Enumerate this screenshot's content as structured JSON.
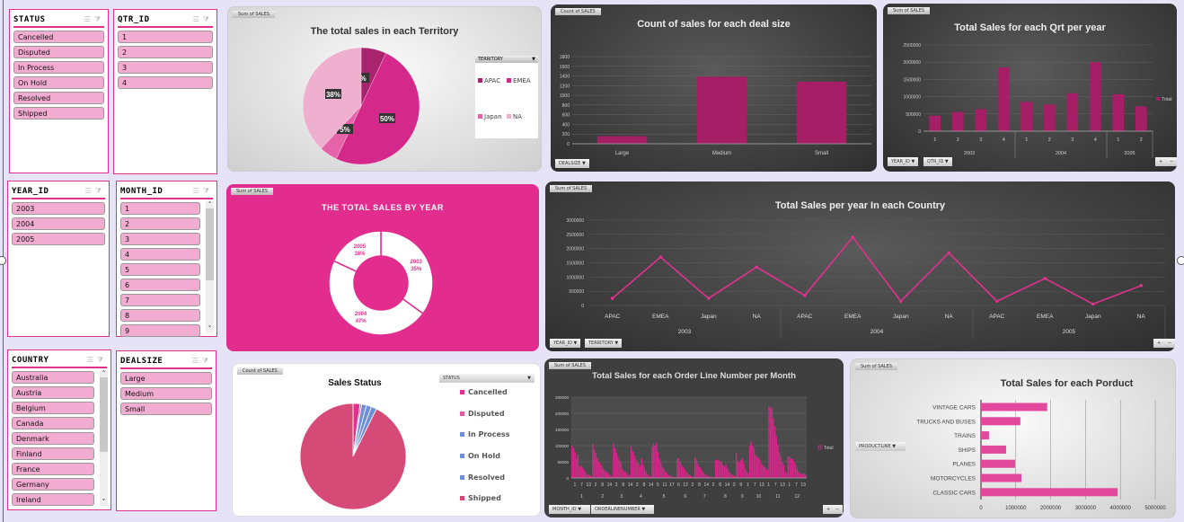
{
  "colors": {
    "background": "#e7e3f7",
    "accent": "#e0318e",
    "slicer_item": "#f2abd1",
    "bar": "#a51e66",
    "line": "#e0318e"
  },
  "slicers": {
    "status": {
      "title": "STATUS",
      "items": [
        "Cancelled",
        "Disputed",
        "In Process",
        "On Hold",
        "Resolved",
        "Shipped"
      ]
    },
    "qtr": {
      "title": "QTR_ID",
      "items": [
        "1",
        "2",
        "3",
        "4"
      ]
    },
    "year": {
      "title": "YEAR_ID",
      "items": [
        "2003",
        "2004",
        "2005"
      ]
    },
    "month": {
      "title": "MONTH_ID",
      "items": [
        "1",
        "2",
        "3",
        "4",
        "5",
        "6",
        "7",
        "8",
        "9"
      ]
    },
    "country": {
      "title": "COUNTRY",
      "items": [
        "Australia",
        "Austria",
        "Belgium",
        "Canada",
        "Denmark",
        "Finland",
        "France",
        "Germany",
        "Ireland"
      ]
    },
    "dealsize": {
      "title": "DEALSIZE",
      "items": [
        "Large",
        "Medium",
        "Small"
      ]
    }
  },
  "panels": {
    "territory": {
      "tag": "Sum of SALES",
      "filter": "TERRITORY"
    },
    "dealsize": {
      "tag": "Count of SALES",
      "filter": "DEALSIZE"
    },
    "qtr": {
      "tag": "Sum of SALES",
      "filters": [
        "YEAR_ID",
        "QTR_ID"
      ]
    },
    "year": {
      "tag": "Sum of SALES"
    },
    "country": {
      "tag": "Sum of SALES",
      "filters": [
        "YEAR_ID",
        "TERRITORY"
      ]
    },
    "status": {
      "tag": "Count of SALES",
      "filter": "STATUS"
    },
    "orderline": {
      "tag": "Sum of SALES",
      "filters": [
        "MONTH_ID",
        "ORDERLINENUMBER"
      ]
    },
    "product": {
      "tag": "Sum of SALES",
      "filter": "PRODUCTLINE"
    }
  },
  "chart_data": [
    {
      "id": "territory",
      "type": "pie",
      "title": "The total sales in each Territory",
      "categories": [
        "APAC",
        "EMEA",
        "Japan",
        "NA"
      ],
      "values": [
        7,
        50,
        5,
        38
      ],
      "labels": [
        "7%",
        "50%",
        "5%",
        "38%"
      ],
      "colors": [
        "#a8246e",
        "#d4288a",
        "#e463a9",
        "#efb0cf"
      ],
      "legend": "right"
    },
    {
      "id": "dealsize",
      "type": "bar",
      "title": "Count of sales for each deal size",
      "categories": [
        "Large",
        "Medium",
        "Small"
      ],
      "values": [
        157,
        1384,
        1282
      ],
      "ylim": [
        0,
        1800
      ],
      "yticks": [
        "0",
        "200",
        "400",
        "600",
        "800",
        "1000",
        "1200",
        "1400",
        "1600",
        "1800"
      ],
      "grid": true
    },
    {
      "id": "qtr",
      "type": "bar",
      "title": "Total Sales for each Qrt per year",
      "groups": [
        {
          "name": "2003",
          "categories": [
            "1",
            "2",
            "3",
            "4"
          ]
        },
        {
          "name": "2004",
          "categories": [
            "1",
            "2",
            "3",
            "4"
          ]
        },
        {
          "name": "2005",
          "categories": [
            "1",
            "2"
          ]
        }
      ],
      "series": [
        {
          "name": "Total",
          "values": [
            450000,
            560000,
            640000,
            1850000,
            850000,
            770000,
            1100000,
            2000000,
            1070000,
            720000
          ]
        }
      ],
      "ylim": [
        0,
        2500000
      ],
      "yticks": [
        "0",
        "500000",
        "1000000",
        "1500000",
        "2000000",
        "2500000"
      ],
      "legend": "right",
      "grid": true
    },
    {
      "id": "year",
      "type": "pie",
      "title": "THE TOTAL SALES BY YEAR",
      "categories": [
        "2003",
        "2004",
        "2005"
      ],
      "values": [
        35,
        47,
        18
      ],
      "labels": [
        "35%",
        "47%",
        "18%"
      ],
      "donut": true
    },
    {
      "id": "country",
      "type": "line",
      "title": "Total Sales per year In each Country",
      "groups": [
        {
          "name": "2003",
          "categories": [
            "APAC",
            "EMEA",
            "Japan",
            "NA"
          ]
        },
        {
          "name": "2004",
          "categories": [
            "APAC",
            "EMEA",
            "Japan",
            "NA"
          ]
        },
        {
          "name": "2005",
          "categories": [
            "APAC",
            "EMEA",
            "Japan",
            "NA"
          ]
        }
      ],
      "values": [
        250000,
        1700000,
        250000,
        1350000,
        350000,
        2400000,
        150000,
        1850000,
        150000,
        950000,
        50000,
        700000
      ],
      "ylim": [
        0,
        3000000
      ],
      "yticks": [
        "0",
        "500000",
        "1000000",
        "1500000",
        "2000000",
        "2500000",
        "3000000"
      ],
      "grid": true
    },
    {
      "id": "status",
      "type": "pie",
      "title": "Sales Status",
      "categories": [
        "Cancelled",
        "Disputed",
        "In Process",
        "On Hold",
        "Resolved",
        "Shipped"
      ],
      "values": [
        60,
        14,
        41,
        44,
        47,
        2617
      ],
      "colors": [
        "#e0318e",
        "#e05aa0",
        "#6f8fd6",
        "#6f8fd6",
        "#6f8fd6",
        "#d64a77"
      ],
      "legend": "right"
    },
    {
      "id": "orderline",
      "type": "bar",
      "title": "Total Sales for each Order Line Number per Month",
      "months": [
        "1",
        "2",
        "3",
        "4",
        "5",
        "6",
        "7",
        "8",
        "9",
        "10",
        "11",
        "12"
      ],
      "xticks": [
        "1",
        "7",
        "13",
        "2",
        "8",
        "14",
        "2",
        "8",
        "14",
        "2",
        "8",
        "14",
        "5",
        "11",
        "17",
        "6",
        "12",
        "2",
        "8",
        "14",
        "2",
        "8",
        "14",
        "3",
        "9",
        "1",
        "7",
        "13",
        "1",
        "7",
        "13",
        "1",
        "7",
        "13"
      ],
      "values": [
        [
          100,
          92,
          80,
          60,
          72,
          35,
          38,
          32,
          25,
          18,
          12,
          10,
          8,
          5
        ],
        [
          105,
          88,
          78,
          62,
          50,
          45,
          38,
          30,
          25,
          20,
          15,
          12,
          8,
          5
        ],
        [
          105,
          92,
          78,
          65,
          55,
          48,
          30,
          22,
          18,
          15,
          10,
          8
        ],
        [
          98,
          82,
          70,
          58,
          50,
          45,
          38,
          60,
          40,
          30,
          20,
          12,
          8,
          5
        ],
        [
          95,
          108,
          100,
          108,
          80,
          60,
          50,
          35,
          30,
          20,
          15,
          10,
          8,
          5,
          4,
          3,
          2
        ],
        [
          62,
          60,
          50,
          40,
          35,
          28,
          20,
          15,
          10,
          8,
          5,
          4
        ],
        [
          65,
          60,
          45,
          35,
          30,
          20,
          15,
          12,
          8,
          5,
          4,
          3,
          2,
          1
        ],
        [
          55,
          58,
          55,
          50,
          52,
          40,
          35,
          42,
          30,
          20,
          15,
          10,
          8,
          5
        ],
        [
          78,
          50,
          48,
          55,
          60,
          45,
          30,
          20,
          15
        ],
        [
          100,
          112,
          100,
          92,
          70,
          68,
          62,
          55,
          45,
          40,
          35,
          30,
          25
        ],
        [
          220,
          218,
          215,
          185,
          160,
          130,
          105,
          80,
          65,
          50,
          40,
          20,
          15
        ],
        [
          68,
          65,
          60,
          58,
          50,
          42,
          30,
          20,
          15,
          12,
          14,
          12,
          10
        ]
      ],
      "value_unit": "thousands",
      "ylim": [
        0,
        250000
      ],
      "yticks": [
        "0",
        "50000",
        "100000",
        "150000",
        "200000",
        "250000"
      ],
      "legend": "right",
      "series_name": "Total"
    },
    {
      "id": "product",
      "type": "hbar",
      "title": "Total Sales for each Porduct",
      "categories": [
        "VINTAGE CARS",
        "TRUCKS AND BUSES",
        "TRAINS",
        "SHIPS",
        "PLANES",
        "MOTORCYCLES",
        "CLASSIC CARS"
      ],
      "values": [
        1900000,
        1130000,
        230000,
        720000,
        980000,
        1160000,
        3920000
      ],
      "xlim": [
        0,
        5000000
      ],
      "xticks": [
        "0",
        "1000000",
        "2000000",
        "3000000",
        "4000000",
        "5000000"
      ],
      "grid": true
    }
  ]
}
